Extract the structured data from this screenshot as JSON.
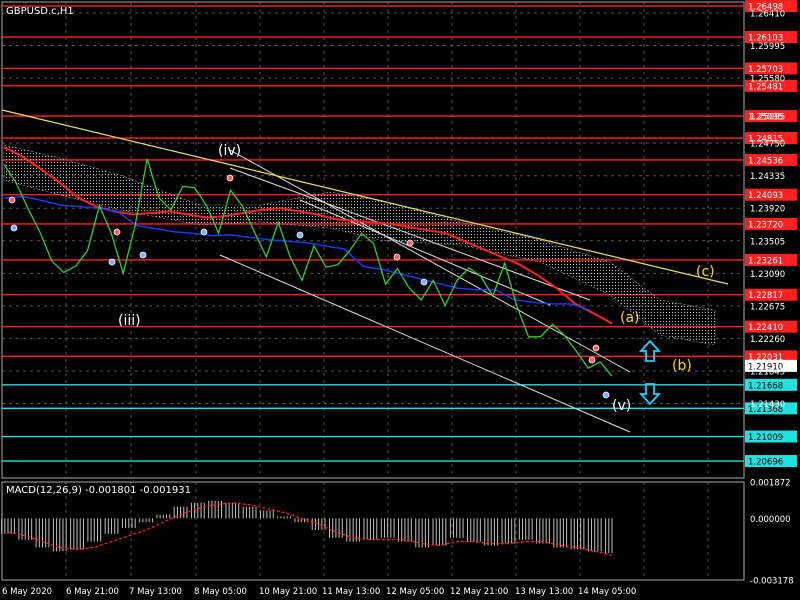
{
  "symbol_label": "GBPUSD.c,H1",
  "macd_label": "MACD(12,26,9) -0.001801 -0.001931",
  "colors": {
    "background": "#000000",
    "grid": "#555555",
    "price": "#32cd32",
    "hline_red": "#ff2020",
    "hline_cyan": "#20e0e0",
    "ma_red": "#ff2020",
    "ma_blue": "#1a3cff",
    "trend_yellow": "#e6e066",
    "channel": "#e0e0e0",
    "fractal_up": "#ff6060",
    "fractal_down": "#7fb0ff",
    "wave_white": "#ffffff",
    "wave_yellow": "#ffd700",
    "arrow_cyan": "#20d0ff",
    "macd_hist": "#c0c0c0",
    "macd_signal": "#ff2020"
  },
  "chart_data": [
    {
      "type": "line",
      "title": "GBPUSD.c,H1",
      "ylim": [
        1.2048,
        1.2655
      ],
      "y_ticks": [
        "1.26410",
        "1.25995",
        "1.25580",
        "1.25095",
        "1.24750",
        "1.24335",
        "1.23920",
        "1.23505",
        "1.23090",
        "1.22675",
        "1.22260",
        "1.21845",
        "1.21430"
      ],
      "x_ticks": [
        "6 May 2020",
        "6 May 21:00",
        "7 May 13:00",
        "8 May 05:00",
        "10 May 21:00",
        "11 May 13:00",
        "12 May 05:00",
        "12 May 21:00",
        "13 May 13:00",
        "14 May 05:00"
      ],
      "grid": true,
      "horizontal_levels": [
        {
          "label": "1.26498",
          "value": 1.26498,
          "color": "red"
        },
        {
          "label": "1.26103",
          "value": 1.26103,
          "color": "red"
        },
        {
          "label": "1.25703",
          "value": 1.25703,
          "color": "red"
        },
        {
          "label": "1.25481",
          "value": 1.25481,
          "color": "red"
        },
        {
          "label": "1.25095",
          "value": 1.25095,
          "color": "red"
        },
        {
          "label": "1.24815",
          "value": 1.24815,
          "color": "red"
        },
        {
          "label": "1.24536",
          "value": 1.24536,
          "color": "red"
        },
        {
          "label": "1.24093",
          "value": 1.24093,
          "color": "red"
        },
        {
          "label": "1.23720",
          "value": 1.2372,
          "color": "red"
        },
        {
          "label": "1.23261",
          "value": 1.23261,
          "color": "red"
        },
        {
          "label": "1.22817",
          "value": 1.22817,
          "color": "red"
        },
        {
          "label": "1.22410",
          "value": 1.2241,
          "color": "red"
        },
        {
          "label": "1.22031",
          "value": 1.22031,
          "color": "red"
        },
        {
          "label": "1.21668",
          "value": 1.21668,
          "color": "cyan"
        },
        {
          "label": "1.21368",
          "value": 1.21368,
          "color": "cyan"
        },
        {
          "label": "1.21009",
          "value": 1.21009,
          "color": "cyan"
        },
        {
          "label": "1.20696",
          "value": 1.20696,
          "color": "cyan"
        }
      ],
      "current_price_label": "1.21910",
      "series": [
        {
          "values": [
            1.2448,
            1.2425,
            1.2392,
            1.2362,
            1.2325,
            1.231,
            1.2318,
            1.2338,
            1.2395,
            1.236,
            1.2309,
            1.237,
            1.2455,
            1.2405,
            1.239,
            1.242,
            1.2418,
            1.2395,
            1.236,
            1.2415,
            1.2395,
            1.2362,
            1.233,
            1.2374,
            1.233,
            1.23,
            1.2344,
            1.2317,
            1.232,
            1.2338,
            1.236,
            1.2347,
            1.2295,
            1.2315,
            1.229,
            1.2275,
            1.23,
            1.2268,
            1.23,
            1.2316,
            1.2305,
            1.228,
            1.2322,
            1.2268,
            1.2228,
            1.2228,
            1.2244,
            1.223,
            1.221,
            1.2188,
            1.2196,
            1.2178
          ]
        },
        {
          "values": [
            1.247,
            1.2458,
            1.2442,
            1.2425,
            1.2406,
            1.2394,
            1.2388,
            1.2384,
            1.2386,
            1.2388,
            1.2384,
            1.238,
            1.2382,
            1.2386,
            1.239,
            1.2392,
            1.2388,
            1.2384,
            1.2378,
            1.2376,
            1.2374,
            1.2372,
            1.2368,
            1.2364,
            1.236,
            1.235,
            1.234,
            1.233,
            1.232,
            1.2306,
            1.229,
            1.227,
            1.2258,
            1.2245
          ]
        },
        {
          "values": [
            1.2405,
            1.2407,
            1.2402,
            1.2396,
            1.2394,
            1.2392,
            1.2388,
            1.237,
            1.2366,
            1.2362,
            1.236,
            1.2357,
            1.2358,
            1.2355,
            1.2352,
            1.235,
            1.2348,
            1.2344,
            1.234,
            1.2318,
            1.2314,
            1.2308,
            1.2302,
            1.2296,
            1.229,
            1.2288,
            1.2288,
            1.2275,
            1.2272,
            1.227,
            1.227,
            1.2262
          ]
        }
      ],
      "annotations": [
        {
          "text": "(iii)",
          "color": "white"
        },
        {
          "text": "(iv)",
          "color": "white"
        },
        {
          "text": "(v)",
          "color": "white"
        },
        {
          "text": "(a)",
          "color": "yellow"
        },
        {
          "text": "(b)",
          "color": "yellow"
        },
        {
          "text": "(c)",
          "color": "yellow"
        }
      ]
    },
    {
      "type": "bar",
      "title": "MACD(12,26,9) -0.001801 -0.001931",
      "ylim": [
        -0.003178,
        0.001872
      ],
      "y_ticks": [
        "0.001872",
        "0.000000",
        "-0.003178"
      ],
      "series": [
        {
          "values": [
            -0.0008,
            -0.0011,
            -0.0015,
            -0.0017,
            -0.0016,
            -0.0012,
            -0.0008,
            -0.0005,
            -0.0002,
            0.0002,
            0.0006,
            0.0008,
            0.0009,
            0.0008,
            0.0006,
            0.0004,
            0.0001,
            -0.0002,
            -0.0006,
            -0.001,
            -0.0012,
            -0.0011,
            -0.001,
            -0.0012,
            -0.0015,
            -0.0014,
            -0.001,
            -0.0012,
            -0.0014,
            -0.0013,
            -0.0011,
            -0.0013,
            -0.0015,
            -0.0016,
            -0.0017,
            -0.0018
          ]
        },
        {
          "values": [
            -0.0007,
            -0.0009,
            -0.0012,
            -0.0015,
            -0.0016,
            -0.0015,
            -0.0012,
            -0.0009,
            -0.0006,
            -0.0002,
            0.0002,
            0.0005,
            0.0007,
            0.0008,
            0.0007,
            0.0005,
            0.0003,
            0.0,
            -0.0003,
            -0.0007,
            -0.001,
            -0.0011,
            -0.0011,
            -0.0011,
            -0.0013,
            -0.0014,
            -0.0012,
            -0.0012,
            -0.0013,
            -0.0013,
            -0.0012,
            -0.0012,
            -0.0014,
            -0.0015,
            -0.0017,
            -0.0019
          ]
        }
      ]
    }
  ]
}
